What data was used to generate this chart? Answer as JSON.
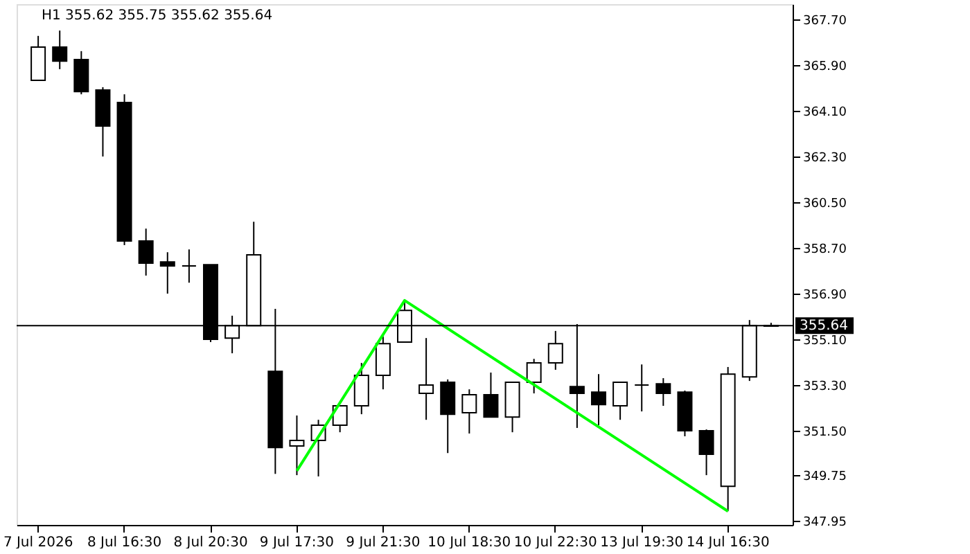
{
  "chart_data": {
    "type": "candlestick",
    "title": "H1  355.62 355.75 355.62 355.64",
    "categories": [
      "7 Jul 2026",
      null,
      null,
      null,
      "8 Jul 16:30",
      null,
      null,
      null,
      "8 Jul 20:30",
      null,
      null,
      null,
      "9 Jul 17:30",
      null,
      null,
      null,
      "9 Jul 21:30",
      null,
      null,
      null,
      "10 Jul 18:30",
      null,
      null,
      null,
      "10 Jul 22:30",
      null,
      null,
      null,
      "13 Jul 19:30",
      null,
      null,
      null,
      "14 Jul 16:30",
      null,
      null
    ],
    "ohlc": [
      [
        365.3,
        367.05,
        365.3,
        366.61
      ],
      [
        366.61,
        367.26,
        365.74,
        366.06
      ],
      [
        366.12,
        366.45,
        364.75,
        364.86
      ],
      [
        364.92,
        365.03,
        362.3,
        363.5
      ],
      [
        364.43,
        364.75,
        358.81,
        358.97
      ],
      [
        358.97,
        359.46,
        357.61,
        358.1
      ],
      [
        358.15,
        358.53,
        356.9,
        357.99
      ],
      [
        357.99,
        358.64,
        357.33,
        357.99
      ],
      [
        358.04,
        358.04,
        354.99,
        355.1
      ],
      [
        355.15,
        356.03,
        354.55,
        355.64
      ],
      [
        355.64,
        359.73,
        355.64,
        358.43
      ],
      [
        353.84,
        356.3,
        349.8,
        350.84
      ],
      [
        350.9,
        352.1,
        349.75,
        351.12
      ],
      [
        351.12,
        351.93,
        349.7,
        351.72
      ],
      [
        351.72,
        352.48,
        351.44,
        352.48
      ],
      [
        352.48,
        354.17,
        352.15,
        353.68
      ],
      [
        353.68,
        355.21,
        353.13,
        354.93
      ],
      [
        354.99,
        356.63,
        354.99,
        356.24
      ],
      [
        352.97,
        355.15,
        351.93,
        353.3
      ],
      [
        353.41,
        353.52,
        350.62,
        352.15
      ],
      [
        352.21,
        353.13,
        351.39,
        352.92
      ],
      [
        352.92,
        353.79,
        352.04,
        352.04
      ],
      [
        352.04,
        353.41,
        351.44,
        353.41
      ],
      [
        353.41,
        354.33,
        352.97,
        354.17
      ],
      [
        354.17,
        355.43,
        353.9,
        354.93
      ],
      [
        353.24,
        355.7,
        351.61,
        352.97
      ],
      [
        353.02,
        353.73,
        351.72,
        352.53
      ],
      [
        352.48,
        353.41,
        351.93,
        353.41
      ],
      [
        353.3,
        354.11,
        352.26,
        353.3
      ],
      [
        353.35,
        353.57,
        352.48,
        352.97
      ],
      [
        353.02,
        353.08,
        351.28,
        351.5
      ],
      [
        351.5,
        351.55,
        349.75,
        350.57
      ],
      [
        349.31,
        354.01,
        348.33,
        353.73
      ],
      [
        353.62,
        355.86,
        353.46,
        355.64
      ],
      [
        355.62,
        355.75,
        355.62,
        355.64
      ]
    ],
    "series": [
      {
        "type": "line",
        "color": "#00ff00",
        "values": [
          null,
          null,
          null,
          null,
          null,
          null,
          null,
          null,
          null,
          null,
          null,
          null,
          349.92,
          null,
          null,
          null,
          null,
          356.63,
          null,
          null,
          null,
          null,
          null,
          null,
          null,
          null,
          null,
          null,
          null,
          null,
          null,
          null,
          348.33,
          null,
          null
        ]
      }
    ],
    "ylim": [
      347.79,
      368.3
    ],
    "yticks": [
      {
        "value": 367.7,
        "label": "367.70"
      },
      {
        "value": 365.9,
        "label": "365.90"
      },
      {
        "value": 364.1,
        "label": "364.10"
      },
      {
        "value": 362.3,
        "label": "362.30"
      },
      {
        "value": 360.5,
        "label": "360.50"
      },
      {
        "value": 358.7,
        "label": "358.70"
      },
      {
        "value": 356.9,
        "label": "356.90"
      },
      {
        "value": 355.1,
        "label": "355.10"
      },
      {
        "value": 353.3,
        "label": "353.30"
      },
      {
        "value": 351.5,
        "label": "351.50"
      },
      {
        "value": 349.75,
        "label": "349.75"
      },
      {
        "value": 347.95,
        "label": "347.95"
      }
    ],
    "ref_lines": [
      {
        "axis": "y",
        "value": 355.64,
        "label": "355.64",
        "color": "#000000"
      }
    ],
    "grid": false
  }
}
